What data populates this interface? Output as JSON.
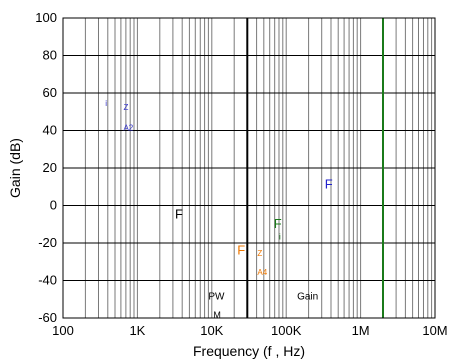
{
  "chart_data": {
    "type": "line",
    "title": "",
    "xlabel": "Frequency (f , Hz)",
    "ylabel": "Gain (dB)",
    "x_scale": "log",
    "xlim": [
      100,
      10000000
    ],
    "ylim": [
      -60,
      100
    ],
    "grid": true,
    "x_ticks": [
      {
        "value": 100,
        "label": "100"
      },
      {
        "value": 1000,
        "label": "1K"
      },
      {
        "value": 10000,
        "label": "10K"
      },
      {
        "value": 100000,
        "label": "100K"
      },
      {
        "value": 1000000,
        "label": "1M"
      },
      {
        "value": 10000000,
        "label": "10M"
      }
    ],
    "y_ticks": [
      {
        "value": 100,
        "label": "100"
      },
      {
        "value": 80,
        "label": "80"
      },
      {
        "value": 60,
        "label": "60"
      },
      {
        "value": 40,
        "label": "40"
      },
      {
        "value": 20,
        "label": "20"
      },
      {
        "value": 0,
        "label": "0"
      },
      {
        "value": -20,
        "label": "-20"
      },
      {
        "value": -40,
        "label": "-40"
      },
      {
        "value": -60,
        "label": "-60"
      }
    ],
    "vertical_markers": [
      {
        "x": 30000,
        "color": "#000000"
      },
      {
        "x": 2000000,
        "color": "#1a7a1a"
      }
    ],
    "annotations": [
      {
        "text": "i",
        "x": 370,
        "y": 53,
        "color": "#3333cc",
        "size": 8
      },
      {
        "text": "Z",
        "x": 650,
        "y": 51,
        "color": "#3333cc",
        "size": 8
      },
      {
        "text": "A2",
        "x": 650,
        "y": 40,
        "color": "#3333cc",
        "size": 8
      },
      {
        "text": "F",
        "x": 330000,
        "y": 9,
        "color": "#2222cc",
        "size": 13
      },
      {
        "text": "F",
        "x": 3200,
        "y": -7,
        "color": "#000000",
        "size": 13
      },
      {
        "text": "F",
        "x": 68000,
        "y": -12,
        "color": "#1a7a1a",
        "size": 13
      },
      {
        "text": "i",
        "x": 80000,
        "y": -18,
        "color": "#1a7a1a",
        "size": 8
      },
      {
        "text": "F",
        "x": 22000,
        "y": -26,
        "color": "#ee7700",
        "size": 13
      },
      {
        "text": "Z",
        "x": 41000,
        "y": -27,
        "color": "#ee7700",
        "size": 8
      },
      {
        "text": "A4",
        "x": 41000,
        "y": -37,
        "color": "#ee7700",
        "size": 8
      },
      {
        "text": "PW",
        "x": 9000,
        "y": -50,
        "color": "#000000",
        "size": 10
      },
      {
        "text": "M",
        "x": 10500,
        "y": -60,
        "color": "#000000",
        "size": 9
      },
      {
        "text": "Gain",
        "x": 140000,
        "y": -50,
        "color": "#000000",
        "size": 10
      }
    ]
  }
}
